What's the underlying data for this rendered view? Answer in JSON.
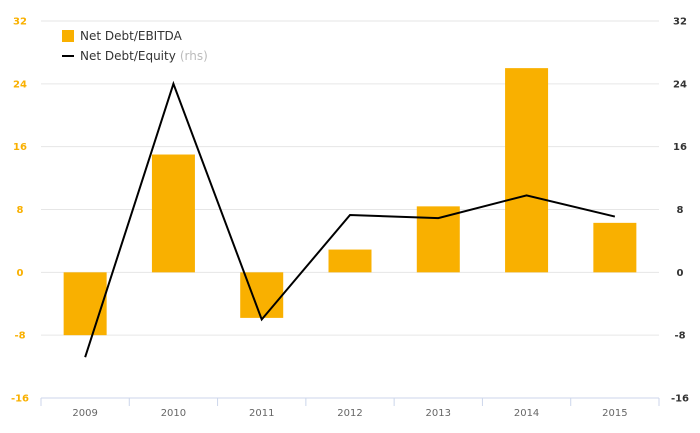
{
  "chart_data": {
    "type": "bar",
    "categories": [
      "2009",
      "2010",
      "2011",
      "2012",
      "2013",
      "2014",
      "2015"
    ],
    "series": [
      {
        "name": "Net Debt/EBITDA",
        "type": "bar",
        "axis": "left",
        "color": "#f9b000",
        "values": [
          -8,
          15,
          -5.8,
          2.9,
          8.4,
          26,
          6.3
        ]
      },
      {
        "name": "Net Debt/Equity",
        "name_suffix": "(rhs)",
        "type": "line",
        "axis": "right",
        "color": "#000000",
        "values": [
          -10.8,
          24,
          -6,
          7.3,
          6.9,
          9.8,
          7.1
        ]
      }
    ],
    "y_left": {
      "min": -16,
      "max": 32,
      "ticks": [
        "32",
        "24",
        "16",
        "8",
        "0",
        "-8",
        "-16"
      ],
      "tick_color": "#f9b000"
    },
    "y_right": {
      "min": -16,
      "max": 32,
      "ticks": [
        "32",
        "24",
        "16",
        "8",
        "0",
        "-8",
        "-16"
      ]
    },
    "grid": true,
    "legend_position": "top-left"
  }
}
